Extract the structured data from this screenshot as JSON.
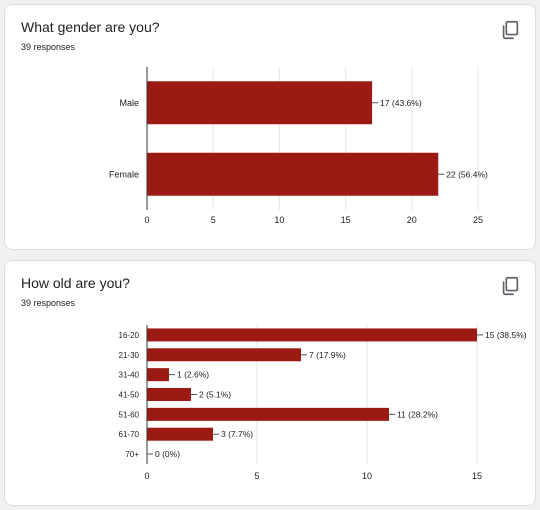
{
  "colors": {
    "bar": "#9b1b14",
    "grid": "#e6e6e6",
    "axis": "#333333"
  },
  "cards": [
    {
      "title": "What gender are you?",
      "responses": "39 responses",
      "copy_icon": "copy-icon",
      "chart_data": {
        "type": "bar",
        "orientation": "horizontal",
        "categories": [
          "Male",
          "Female"
        ],
        "values": [
          17,
          22
        ],
        "labels": [
          "17 (43.6%)",
          "22 (56.4%)"
        ],
        "xlim": [
          0,
          25
        ],
        "xticks": [
          0,
          5,
          10,
          15,
          20,
          25
        ],
        "grid": true
      }
    },
    {
      "title": "How old are you?",
      "responses": "39 responses",
      "copy_icon": "copy-icon",
      "chart_data": {
        "type": "bar",
        "orientation": "horizontal",
        "categories": [
          "16-20",
          "21-30",
          "31-40",
          "41-50",
          "51-60",
          "61-70",
          "70+"
        ],
        "values": [
          15,
          7,
          1,
          2,
          11,
          3,
          0
        ],
        "labels": [
          "15 (38.5%)",
          "7 (17.9%)",
          "1 (2.6%)",
          "2 (5.1%)",
          "11 (28.2%)",
          "3 (7.7%)",
          "0 (0%)"
        ],
        "xlim": [
          0,
          15
        ],
        "xticks": [
          0,
          5,
          10,
          15
        ],
        "grid": true
      }
    }
  ]
}
